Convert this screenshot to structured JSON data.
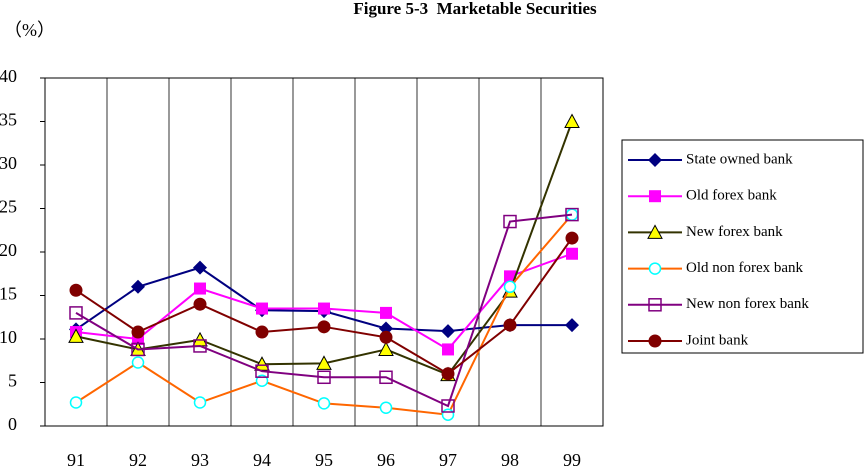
{
  "chart_data": {
    "type": "line",
    "title": "Figure 5-3  Marketable Securities",
    "y_label": "（%）",
    "categories": [
      "91",
      "92",
      "93",
      "94",
      "95",
      "96",
      "97",
      "98",
      "99"
    ],
    "ylim": [
      0,
      40
    ],
    "yticks": [
      0,
      5,
      10,
      15,
      20,
      25,
      30,
      35,
      40
    ],
    "grid": true,
    "legend": "right",
    "series": [
      {
        "name": "State owned bank",
        "color": "#000080",
        "marker": "diamond",
        "marker_fill": "#000080",
        "values": [
          11.1,
          16,
          18.2,
          13.3,
          13.2,
          11.2,
          10.9,
          11.6,
          11.6
        ]
      },
      {
        "name": "Old forex bank",
        "color": "#ff00ff",
        "marker": "square",
        "marker_fill": "#ff00ff",
        "values": [
          10.8,
          10,
          15.8,
          13.5,
          13.5,
          13,
          8.8,
          17.2,
          19.8
        ]
      },
      {
        "name": "New forex bank",
        "color": "#333300",
        "marker": "triangle",
        "marker_fill": "#ffff00",
        "values": [
          10.3,
          8.8,
          9.9,
          7.1,
          7.2,
          8.8,
          5.9,
          15.5,
          35
        ]
      },
      {
        "name": "Old non forex bank",
        "color": "#ff6600",
        "marker": "circle-open",
        "marker_fill": "#00ffff",
        "values": [
          2.7,
          7.3,
          2.7,
          5.2,
          2.6,
          2.1,
          1.3,
          16,
          24.3
        ]
      },
      {
        "name": "New non forex bank",
        "color": "#800080",
        "marker": "square-open",
        "marker_fill": "#800080",
        "values": [
          13,
          8.8,
          9.2,
          6.3,
          5.6,
          5.6,
          2.3,
          23.5,
          24.3
        ]
      },
      {
        "name": "Joint bank",
        "color": "#800000",
        "marker": "circle",
        "marker_fill": "#800000",
        "values": [
          15.6,
          10.8,
          14,
          10.8,
          11.4,
          10.2,
          6,
          11.6,
          21.6
        ]
      }
    ]
  }
}
